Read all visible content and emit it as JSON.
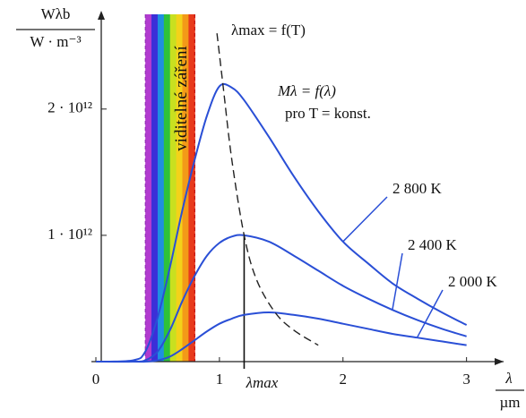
{
  "chart_data": {
    "type": "line",
    "y_label": "Wλb",
    "y_unit": "W · m⁻³",
    "x_label": "λ",
    "x_unit": "µm",
    "xlim": [
      0,
      3.3
    ],
    "ylim": [
      0,
      2750000000000.0
    ],
    "xticks": [
      0,
      1,
      2,
      3
    ],
    "yticks": [
      {
        "value": 1000000000000.0,
        "label": "1 · 10¹²"
      },
      {
        "value": 2000000000000.0,
        "label": "2 · 10¹²"
      }
    ],
    "x": [
      0,
      0.3,
      0.4,
      0.5,
      0.6,
      0.7,
      0.8,
      0.9,
      1.0,
      1.1,
      1.2,
      1.4,
      1.6,
      1.8,
      2.0,
      2.2,
      2.4,
      2.6,
      2.8,
      3.0
    ],
    "series": [
      {
        "name": "2 800 K",
        "color": "#2a4fd6",
        "values": [
          0,
          10000000000.0,
          80000000000.0,
          350000000000.0,
          750000000000.0,
          1200000000000.0,
          1600000000000.0,
          1950000000000.0,
          2180000000000.0,
          2170000000000.0,
          2070000000000.0,
          1780000000000.0,
          1470000000000.0,
          1190000000000.0,
          950000000000.0,
          780000000000.0,
          620000000000.0,
          500000000000.0,
          390000000000.0,
          290000000000.0
        ]
      },
      {
        "name": "2 400 K",
        "color": "#2a4fd6",
        "values": [
          0,
          0,
          10000000000.0,
          80000000000.0,
          250000000000.0,
          480000000000.0,
          680000000000.0,
          840000000000.0,
          940000000000.0,
          990000000000.0,
          1000000000000.0,
          950000000000.0,
          840000000000.0,
          720000000000.0,
          600000000000.0,
          500000000000.0,
          410000000000.0,
          330000000000.0,
          260000000000.0,
          200000000000.0
        ]
      },
      {
        "name": "2 000 K",
        "color": "#2a4fd6",
        "values": [
          0,
          0,
          0,
          10000000000.0,
          40000000000.0,
          100000000000.0,
          170000000000.0,
          240000000000.0,
          300000000000.0,
          340000000000.0,
          370000000000.0,
          390000000000.0,
          370000000000.0,
          340000000000.0,
          300000000000.0,
          260000000000.0,
          220000000000.0,
          190000000000.0,
          160000000000.0,
          130000000000.0
        ]
      }
    ],
    "wien": {
      "label": "λmax = f(T)",
      "color": "#222",
      "x": [
        0.98,
        1.03,
        1.1,
        1.2,
        1.3,
        1.45,
        1.6,
        1.8
      ],
      "values": [
        2600000000000.0,
        2180000000000.0,
        1600000000000.0,
        1000000000000.0,
        650000000000.0,
        390000000000.0,
        250000000000.0,
        130000000000.0
      ]
    },
    "lambda_max": {
      "label": "λmax",
      "x": 1.2
    },
    "visible_band": {
      "label": "viditelné záření",
      "range": [
        0.4,
        0.8
      ],
      "colors": [
        "#b23bd0",
        "#3b2fd8",
        "#1f8fe0",
        "#2ec23a",
        "#c8e020",
        "#f3d21a",
        "#f39a18",
        "#e83a1c"
      ]
    },
    "annotations": [
      "Mλ = f(λ)",
      "pro T = konst."
    ]
  }
}
